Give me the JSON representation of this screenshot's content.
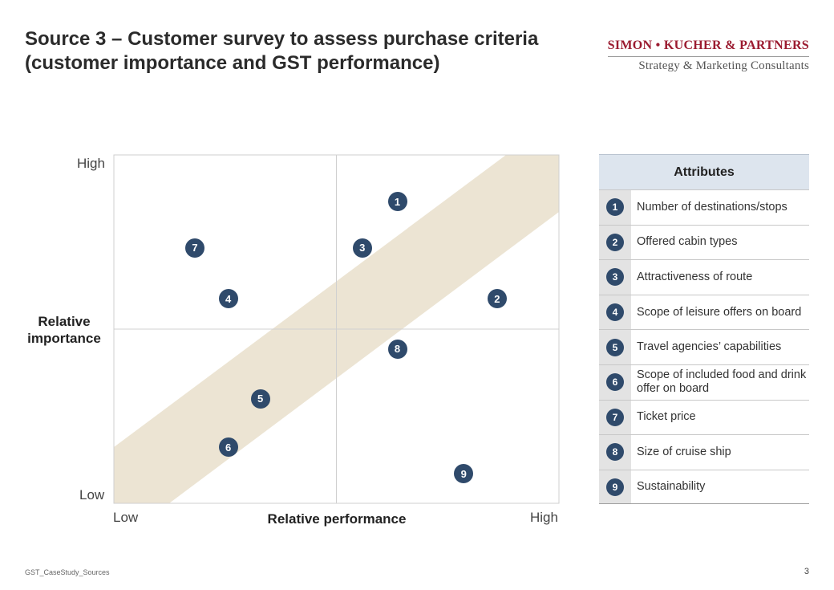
{
  "header": {
    "title_line1": "Source 3 – Customer survey to assess purchase criteria",
    "title_line2": "(customer importance and GST performance)",
    "brand_name": "SIMON • KUCHER & PARTNERS",
    "brand_tagline": "Strategy & Marketing Consultants"
  },
  "chart_data": {
    "type": "scatter",
    "title": "",
    "xlabel": "Relative performance",
    "ylabel": "Relative importance",
    "x_tick_labels": [
      "Low",
      "High"
    ],
    "y_tick_labels": [
      "Low",
      "High"
    ],
    "xlim": [
      0,
      1
    ],
    "ylim": [
      0,
      1
    ],
    "band_color": "#ece4d3",
    "marker_color": "#2f4a6b",
    "points": [
      {
        "id": "1",
        "x": 0.637,
        "y": 0.866
      },
      {
        "id": "2",
        "x": 0.861,
        "y": 0.587
      },
      {
        "id": "3",
        "x": 0.558,
        "y": 0.733
      },
      {
        "id": "4",
        "x": 0.257,
        "y": 0.587
      },
      {
        "id": "5",
        "x": 0.329,
        "y": 0.3
      },
      {
        "id": "6",
        "x": 0.257,
        "y": 0.161
      },
      {
        "id": "7",
        "x": 0.182,
        "y": 0.733
      },
      {
        "id": "8",
        "x": 0.637,
        "y": 0.443
      },
      {
        "id": "9",
        "x": 0.786,
        "y": 0.085
      }
    ]
  },
  "legend": {
    "title": "Attributes",
    "items": [
      {
        "num": "1",
        "label": "Number of destinations/stops"
      },
      {
        "num": "2",
        "label": "Offered cabin types"
      },
      {
        "num": "3",
        "label": "Attractiveness of route"
      },
      {
        "num": "4",
        "label": "Scope of leisure offers on board"
      },
      {
        "num": "5",
        "label": "Travel agencies’ capabilities"
      },
      {
        "num": "6",
        "label": "Scope of included food and drink offer on board"
      },
      {
        "num": "7",
        "label": "Ticket price"
      },
      {
        "num": "8",
        "label": "Size of cruise ship"
      },
      {
        "num": "9",
        "label": "Sustainability"
      }
    ]
  },
  "footer": {
    "left": "GST_CaseStudy_Sources",
    "page": "3"
  }
}
